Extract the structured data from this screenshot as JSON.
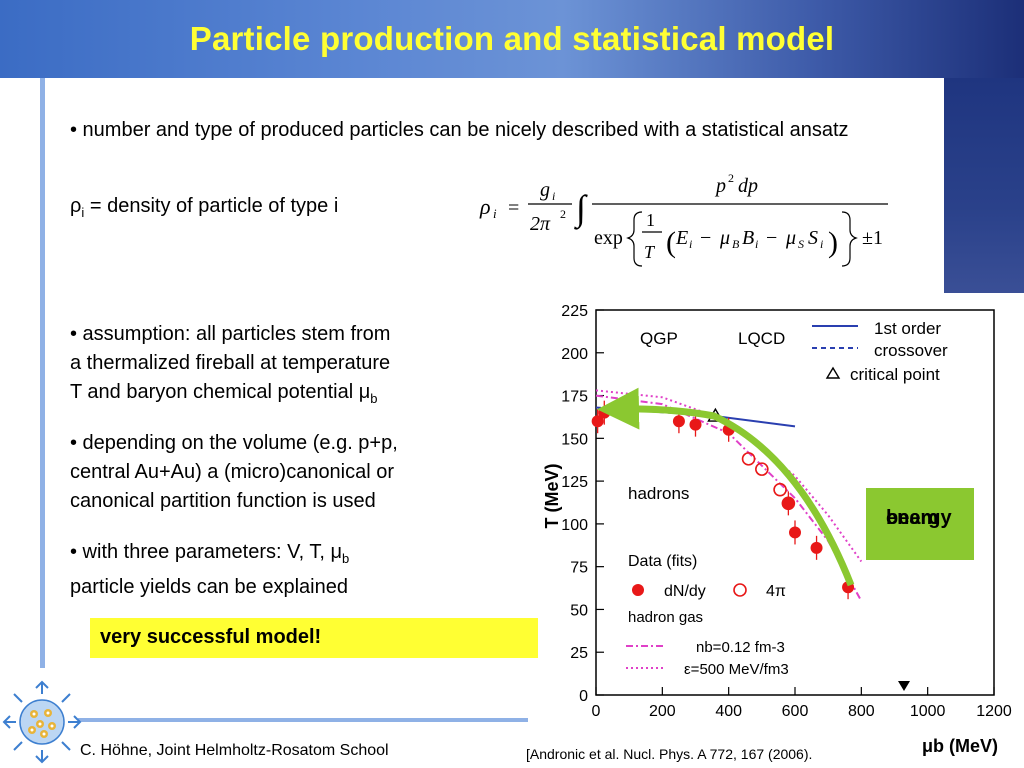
{
  "slide": {
    "title": "Particle production and statistical model",
    "bullet1": {
      "text": "• number and type of produced particles can be nicely described with a statistical ansatz"
    },
    "rho_def": {
      "sym": "ρ",
      "sub": "i",
      "rest": " = density of particle of type i"
    },
    "formula": {
      "lhs": "ρ",
      "lhs_sub": "i",
      "eq": "=",
      "g": "g",
      "g_sub": "i",
      "den": "2π",
      "den_sup": "2",
      "integral": "∫",
      "num_p": "p",
      "num_sup": "2",
      "num_dp": "dp",
      "exp": "exp",
      "one": "1",
      "T": "T",
      "E": "E",
      "E_sub": "i",
      "minus1": "−",
      "muB": "μ",
      "muB_sub": "B",
      "B": "B",
      "B_sub": "i",
      "minus2": "−",
      "muS": "μ",
      "muS_sub": "S",
      "S": "S",
      "S_sub": "i",
      "pm": "±1"
    },
    "bullet2": {
      "line1": "• assumption: all particles stem from",
      "line2": "a thermalized fireball at temperature",
      "line3": "T and baryon chemical potential ",
      "mu": "μ",
      "mu_sub": "b"
    },
    "bullet3": {
      "line1": "• depending on the volume (e.g. p+p,",
      "line2": "central Au+Au) a (micro)canonical or",
      "line3": "canonical partition function is used"
    },
    "bullet4": {
      "line1": "• with three parameters: V, T, ",
      "mu": "μ",
      "mu_sub": "b",
      "line2": "particle yields can be explained"
    },
    "highlight": "very successful model!",
    "beam_box": {
      "line1": "beam",
      "line2": "energy"
    },
    "footer": {
      "left": "C. Höhne,   Joint Helmholtz-Rosatom School",
      "ref": "[Andronic et al. Nucl. Phys. A 772, 167 (2006)."
    },
    "colors": {
      "title": "#ffff33",
      "highlight_bg": "#ffff33",
      "beam_bg": "#8bc830",
      "data_red": "#e81818",
      "first_order": "#2a3fb0",
      "dashdot": "#e040c8",
      "arrow_green": "#8bc830"
    }
  },
  "chart_data": {
    "type": "scatter",
    "xlabel": "μb (MeV)",
    "ylabel": "T (MeV)",
    "xlim": [
      0,
      1200
    ],
    "ylim": [
      0,
      225
    ],
    "xticks": [
      "0",
      "200",
      "400",
      "600",
      "800",
      "1000",
      "1200"
    ],
    "yticks": [
      "0",
      "25",
      "50",
      "75",
      "100",
      "125",
      "150",
      "175",
      "200",
      "225"
    ],
    "region_labels": [
      "QGP",
      "LQCD",
      "hadrons",
      "hadron gas"
    ],
    "legend": {
      "first_order": "1st order",
      "crossover": "crossover",
      "critical_point": "critical point",
      "data_fits": "Data (fits)",
      "dndy": "dN/dy",
      "four_pi": "4π",
      "nb": "nb=0.12 fm-3",
      "eps": "ε=500 MeV/fm3"
    },
    "series": [
      {
        "name": "dN/dy",
        "x": [
          5,
          25,
          250,
          300,
          400,
          580,
          600,
          665,
          760
        ],
        "y": [
          160,
          165,
          160,
          158,
          155,
          112,
          95,
          86,
          63
        ]
      },
      {
        "name": "4π",
        "x": [
          460,
          500,
          555,
          580
        ],
        "y": [
          138,
          132,
          120,
          112
        ]
      },
      {
        "name": "1st order",
        "x": [
          360,
          600
        ],
        "y": [
          163,
          157
        ]
      },
      {
        "name": "crossover",
        "x": [
          0,
          360
        ],
        "y": [
          168,
          163
        ]
      },
      {
        "name": "critical point",
        "x": [
          360
        ],
        "y": [
          163
        ]
      },
      {
        "name": "nb=0.12 fm-3",
        "x": [
          0,
          200,
          400,
          600,
          700,
          800
        ],
        "y": [
          175,
          170,
          153,
          115,
          90,
          55
        ]
      },
      {
        "name": "ε=500 MeV/fm3",
        "x": [
          0,
          200,
          400,
          600,
          700,
          800
        ],
        "y": [
          178,
          174,
          160,
          128,
          105,
          78
        ]
      }
    ]
  }
}
